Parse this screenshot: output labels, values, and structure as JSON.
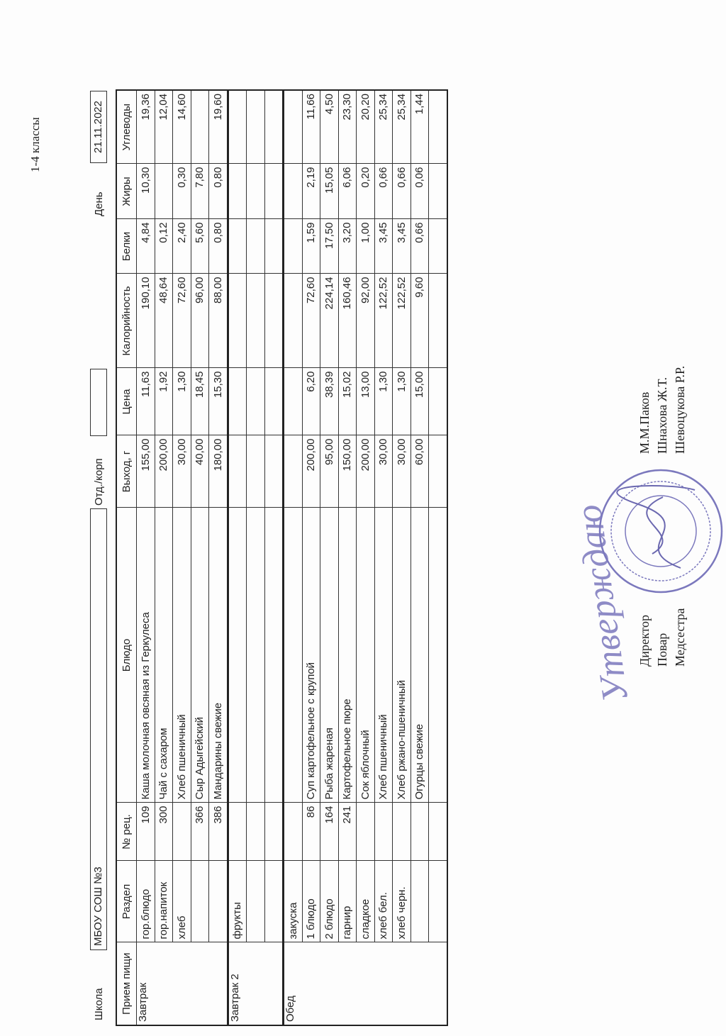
{
  "grade_label": "1-4 классы",
  "header": {
    "school_label": "Школа",
    "school_value": "МБОУ СОШ №3",
    "dept_label": "Отд./корп",
    "dept_value": "",
    "day_label": "День",
    "date_value": "21.11.2022"
  },
  "columns": [
    "Прием пищи",
    "Раздел",
    "№ рец.",
    "Блюдо",
    "Выход, г",
    "Цена",
    "Калорийность",
    "Белки",
    "Жиры",
    "Углеводы"
  ],
  "groups": [
    {
      "meal": "Завтрак",
      "rows": [
        {
          "section": "гор.блюдо",
          "recipe": "109",
          "dish": "Каша молочная овсяная из Геркулеса",
          "yield": "155,00",
          "price": "11,63",
          "kcal": "190,10",
          "protein": "4,84",
          "fat": "10,30",
          "carbs": "19,36"
        },
        {
          "section": "гор.напиток",
          "recipe": "300",
          "dish": "Чай с сахаром",
          "yield": "200,00",
          "price": "1,92",
          "kcal": "48,64",
          "protein": "0,12",
          "fat": "",
          "carbs": "12,04"
        },
        {
          "section": "хлеб",
          "recipe": "",
          "dish": "Хлеб пшеничный",
          "yield": "30,00",
          "price": "1,30",
          "kcal": "72,60",
          "protein": "2,40",
          "fat": "0,30",
          "carbs": "14,60"
        },
        {
          "section": "",
          "recipe": "366",
          "dish": "Сыр Адыгейский",
          "yield": "40,00",
          "price": "18,45",
          "kcal": "96,00",
          "protein": "5,60",
          "fat": "7,80",
          "carbs": ""
        },
        {
          "section": "",
          "recipe": "386",
          "dish": "Мандарины свежие",
          "yield": "180,00",
          "price": "15,30",
          "kcal": "88,00",
          "protein": "0,80",
          "fat": "0,80",
          "carbs": "19,60"
        }
      ]
    },
    {
      "meal": "Завтрак 2",
      "rows": [
        {
          "section": "фрукты",
          "recipe": "",
          "dish": "",
          "yield": "",
          "price": "",
          "kcal": "",
          "protein": "",
          "fat": "",
          "carbs": ""
        },
        {
          "section": "",
          "recipe": "",
          "dish": "",
          "yield": "",
          "price": "",
          "kcal": "",
          "protein": "",
          "fat": "",
          "carbs": ""
        },
        {
          "section": "",
          "recipe": "",
          "dish": "",
          "yield": "",
          "price": "",
          "kcal": "",
          "protein": "",
          "fat": "",
          "carbs": ""
        }
      ]
    },
    {
      "meal": "Обед",
      "rows": [
        {
          "section": "закуска",
          "recipe": "",
          "dish": "",
          "yield": "",
          "price": "",
          "kcal": "",
          "protein": "",
          "fat": "",
          "carbs": ""
        },
        {
          "section": "1 блюдо",
          "recipe": "86",
          "dish": "Суп картофельное с крупой",
          "yield": "200,00",
          "price": "6,20",
          "kcal": "72,60",
          "protein": "1,59",
          "fat": "2,19",
          "carbs": "11,66"
        },
        {
          "section": "2 блюдо",
          "recipe": "164",
          "dish": "Рыба жареная",
          "yield": "95,00",
          "price": "38,39",
          "kcal": "224,14",
          "protein": "17,50",
          "fat": "15,05",
          "carbs": "4,50"
        },
        {
          "section": "гарнир",
          "recipe": "241",
          "dish": "Картофельное пюре",
          "yield": "150,00",
          "price": "15,02",
          "kcal": "160,46",
          "protein": "3,20",
          "fat": "6,06",
          "carbs": "23,30"
        },
        {
          "section": "сладкое",
          "recipe": "",
          "dish": "Сок яблочный",
          "yield": "200,00",
          "price": "13,00",
          "kcal": "92,00",
          "protein": "1,00",
          "fat": "0,20",
          "carbs": "20,20"
        },
        {
          "section": "хлеб бел.",
          "recipe": "",
          "dish": "Хлеб пшеничный",
          "yield": "30,00",
          "price": "1,30",
          "kcal": "122,52",
          "protein": "3,45",
          "fat": "0,66",
          "carbs": "25,34"
        },
        {
          "section": "хлеб черн.",
          "recipe": "",
          "dish": "Хлеб ржано-пшеничный",
          "yield": "30,00",
          "price": "1,30",
          "kcal": "122,52",
          "protein": "3,45",
          "fat": "0,66",
          "carbs": "25,34"
        },
        {
          "section": "",
          "recipe": "",
          "dish": "Огурцы свежие",
          "yield": "60,00",
          "price": "15,00",
          "kcal": "9,60",
          "protein": "0,66",
          "fat": "0,06",
          "carbs": "1,44"
        },
        {
          "section": "",
          "recipe": "",
          "dish": "",
          "yield": "",
          "price": "",
          "kcal": "",
          "protein": "",
          "fat": "",
          "carbs": ""
        }
      ]
    }
  ],
  "signatures": {
    "approval_handwriting": "Утверждаю",
    "roles": [
      "Директор",
      "Повар",
      "Медсестра"
    ],
    "names": [
      "М.М.Паков",
      "Шнахова Ж.Т.",
      "Шевоцукова Р.Р."
    ]
  },
  "colors": {
    "stamp": "#7b78bd",
    "ink": "#222222"
  }
}
